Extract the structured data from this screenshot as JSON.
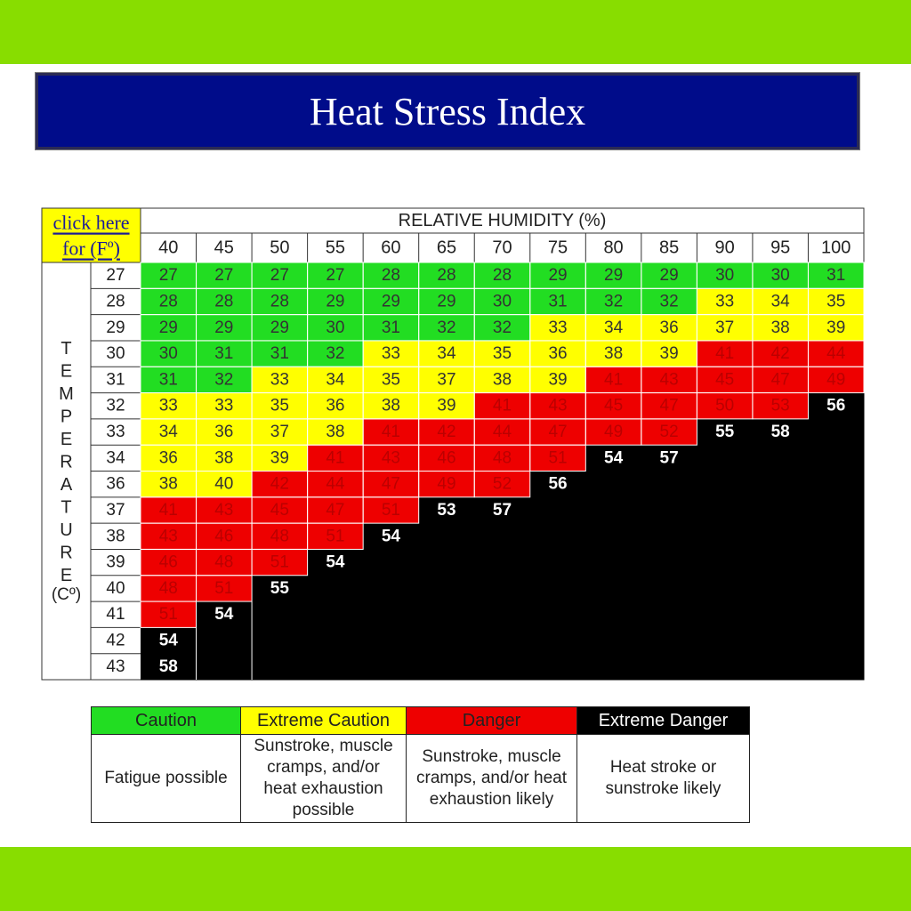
{
  "title": "Heat Stress Index",
  "colors": {
    "band": "#88dd00",
    "title_bg": "#000c8a",
    "caution": "#22dd22",
    "extreme_caution": "#ffff00",
    "danger": "#ee0000",
    "extreme_danger": "#000000"
  },
  "chart_data": {
    "type": "table",
    "link_text_line1": "click here",
    "link_text_line2": "for (Fº)",
    "column_header": "RELATIVE HUMIDITY (%)",
    "row_header_letters": [
      "T",
      "E",
      "M",
      "P",
      "E",
      "R",
      "A",
      "T",
      "U",
      "R",
      "E"
    ],
    "row_header_unit": "(Cº)",
    "humidity": [
      40,
      45,
      50,
      55,
      60,
      65,
      70,
      75,
      80,
      85,
      90,
      95,
      100
    ],
    "temperatures": [
      27,
      28,
      29,
      30,
      31,
      32,
      33,
      34,
      36,
      37,
      38,
      39,
      40,
      41,
      42,
      43
    ],
    "values": [
      [
        27,
        27,
        27,
        27,
        28,
        28,
        28,
        29,
        29,
        29,
        30,
        30,
        31
      ],
      [
        28,
        28,
        28,
        29,
        29,
        29,
        30,
        31,
        32,
        32,
        33,
        34,
        35
      ],
      [
        29,
        29,
        29,
        30,
        31,
        32,
        32,
        33,
        34,
        36,
        37,
        38,
        39
      ],
      [
        30,
        31,
        31,
        32,
        33,
        34,
        35,
        36,
        38,
        39,
        41,
        42,
        44
      ],
      [
        31,
        32,
        33,
        34,
        35,
        37,
        38,
        39,
        41,
        43,
        45,
        47,
        49
      ],
      [
        33,
        33,
        35,
        36,
        38,
        39,
        41,
        43,
        45,
        47,
        50,
        53,
        56
      ],
      [
        34,
        36,
        37,
        38,
        41,
        42,
        44,
        47,
        49,
        52,
        55,
        58,
        null
      ],
      [
        36,
        38,
        39,
        41,
        43,
        46,
        48,
        51,
        54,
        57,
        null,
        null,
        null
      ],
      [
        38,
        40,
        42,
        44,
        47,
        49,
        52,
        56,
        null,
        null,
        null,
        null,
        null
      ],
      [
        41,
        43,
        45,
        47,
        51,
        53,
        57,
        null,
        null,
        null,
        null,
        null,
        null
      ],
      [
        43,
        46,
        48,
        51,
        54,
        null,
        null,
        null,
        null,
        null,
        null,
        null,
        null
      ],
      [
        46,
        48,
        51,
        54,
        null,
        null,
        null,
        null,
        null,
        null,
        null,
        null,
        null
      ],
      [
        48,
        51,
        55,
        null,
        null,
        null,
        null,
        null,
        null,
        null,
        null,
        null,
        null
      ],
      [
        51,
        54,
        null,
        null,
        null,
        null,
        null,
        null,
        null,
        null,
        null,
        null,
        null
      ],
      [
        54,
        null,
        null,
        null,
        null,
        null,
        null,
        null,
        null,
        null,
        null,
        null,
        null
      ],
      [
        58,
        null,
        null,
        null,
        null,
        null,
        null,
        null,
        null,
        null,
        null,
        null,
        null
      ]
    ],
    "categories": [
      [
        0,
        0,
        0,
        0,
        0,
        0,
        0,
        0,
        0,
        0,
        0,
        0,
        0
      ],
      [
        0,
        0,
        0,
        0,
        0,
        0,
        0,
        0,
        0,
        0,
        1,
        1,
        1
      ],
      [
        0,
        0,
        0,
        0,
        0,
        0,
        0,
        1,
        1,
        1,
        1,
        1,
        1
      ],
      [
        0,
        0,
        0,
        0,
        1,
        1,
        1,
        1,
        1,
        1,
        2,
        2,
        2
      ],
      [
        0,
        0,
        1,
        1,
        1,
        1,
        1,
        1,
        2,
        2,
        2,
        2,
        2
      ],
      [
        1,
        1,
        1,
        1,
        1,
        1,
        2,
        2,
        2,
        2,
        2,
        2,
        3
      ],
      [
        1,
        1,
        1,
        1,
        2,
        2,
        2,
        2,
        2,
        2,
        3,
        3,
        3
      ],
      [
        1,
        1,
        1,
        2,
        2,
        2,
        2,
        2,
        3,
        3,
        3,
        3,
        3
      ],
      [
        1,
        1,
        2,
        2,
        2,
        2,
        2,
        3,
        3,
        3,
        3,
        3,
        3
      ],
      [
        2,
        2,
        2,
        2,
        2,
        3,
        3,
        3,
        3,
        3,
        3,
        3,
        3
      ],
      [
        2,
        2,
        2,
        2,
        3,
        3,
        3,
        3,
        3,
        3,
        3,
        3,
        3
      ],
      [
        2,
        2,
        2,
        3,
        3,
        3,
        3,
        3,
        3,
        3,
        3,
        3,
        3
      ],
      [
        2,
        2,
        3,
        3,
        3,
        3,
        3,
        3,
        3,
        3,
        3,
        3,
        3
      ],
      [
        2,
        3,
        3,
        3,
        3,
        3,
        3,
        3,
        3,
        3,
        3,
        3,
        3
      ],
      [
        3,
        3,
        3,
        3,
        3,
        3,
        3,
        3,
        3,
        3,
        3,
        3,
        3
      ],
      [
        3,
        3,
        3,
        3,
        3,
        3,
        3,
        3,
        3,
        3,
        3,
        3,
        3
      ]
    ]
  },
  "legend": [
    {
      "label": "Caution",
      "description": [
        "Fatigue possible"
      ]
    },
    {
      "label": "Extreme Caution",
      "description": [
        "Sunstroke, muscle",
        "cramps, and/or",
        "heat exhaustion",
        "possible"
      ]
    },
    {
      "label": "Danger",
      "description": [
        "Sunstroke, muscle",
        "cramps, and/or heat",
        "exhaustion likely"
      ]
    },
    {
      "label": "Extreme Danger",
      "description": [
        "Heat stroke or",
        "sunstroke likely"
      ]
    }
  ]
}
